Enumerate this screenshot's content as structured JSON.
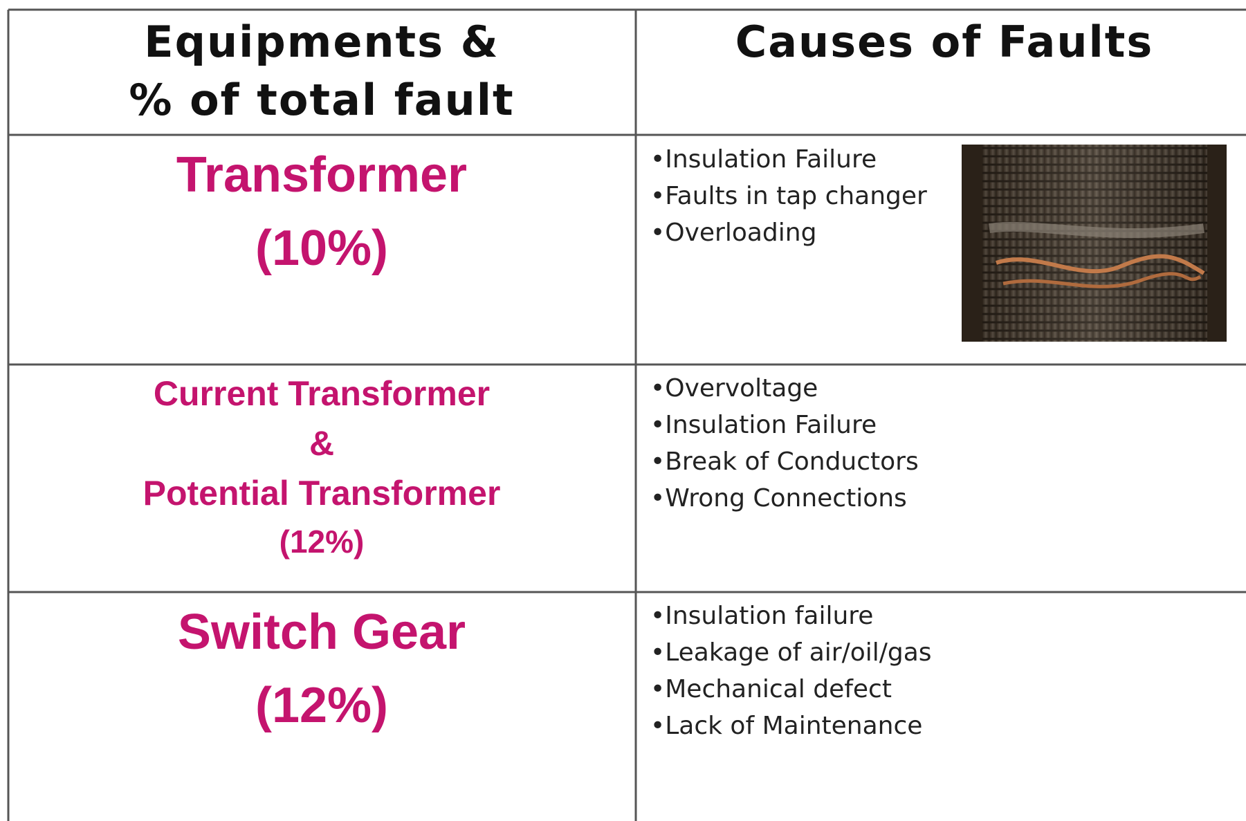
{
  "table": {
    "header": [
      [
        "Equipments &",
        "% of total fault"
      ],
      [
        "Causes of Faults"
      ]
    ],
    "rows": [
      {
        "equipment": [
          "Transformer",
          "(10%)"
        ],
        "causes": [
          "•Insulation Failure",
          "•Faults in tap changer",
          "•Overloading"
        ]
      },
      {
        "equipment": [
          "Current Transformer",
          "&",
          "Potential Transformer",
          "(12%)"
        ],
        "causes": [
          "•Overvoltage",
          "•Insulation Failure",
          "•Break of Conductors",
          "•Wrong Connections"
        ]
      },
      {
        "equipment": [
          "Switch Gear",
          "(12%)"
        ],
        "causes": [
          "•Insulation failure",
          "•Leakage of air/oil/gas",
          "•Mechanical defect",
          "•Lack of Maintenance"
        ]
      }
    ]
  }
}
